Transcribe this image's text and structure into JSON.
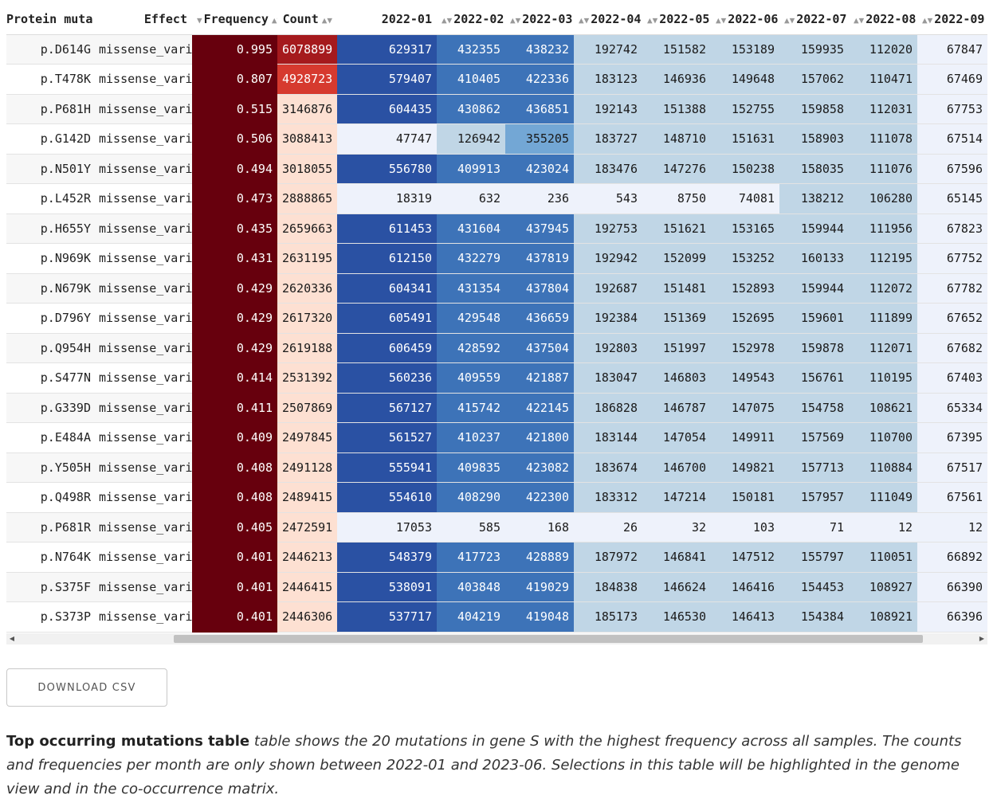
{
  "table": {
    "columns": [
      {
        "label": "Protein muta",
        "sort_icon": "sort-icon"
      },
      {
        "label": "Effect",
        "sort_icon": "sort-icon"
      },
      {
        "label": "Frequency",
        "sort_icon": "sort-desc-icon"
      },
      {
        "label": "Count",
        "sort_icon": "sort-icon"
      },
      {
        "label": "2022-01",
        "sort_icon": "sort-icon"
      },
      {
        "label": "2022-02",
        "sort_icon": "sort-icon"
      },
      {
        "label": "2022-03",
        "sort_icon": "sort-icon"
      },
      {
        "label": "2022-04",
        "sort_icon": "sort-icon"
      },
      {
        "label": "2022-05",
        "sort_icon": "sort-icon"
      },
      {
        "label": "2022-06",
        "sort_icon": "sort-icon"
      },
      {
        "label": "2022-07",
        "sort_icon": "sort-icon"
      },
      {
        "label": "2022-08",
        "sort_icon": "sort-icon"
      },
      {
        "label": "2022-09",
        "sort_icon": "sort-icon"
      }
    ],
    "rows": [
      {
        "mutation": "p.D614G",
        "effect": "missense_vari",
        "frequency": "0.995",
        "count": "6078899",
        "months": [
          "629317",
          "432355",
          "438232",
          "192742",
          "151582",
          "153189",
          "159935",
          "112020",
          "67847"
        ]
      },
      {
        "mutation": "p.T478K",
        "effect": "missense_vari",
        "frequency": "0.807",
        "count": "4928723",
        "months": [
          "579407",
          "410405",
          "422336",
          "183123",
          "146936",
          "149648",
          "157062",
          "110471",
          "67469"
        ]
      },
      {
        "mutation": "p.P681H",
        "effect": "missense_vari",
        "frequency": "0.515",
        "count": "3146876",
        "months": [
          "604435",
          "430862",
          "436851",
          "192143",
          "151388",
          "152755",
          "159858",
          "112031",
          "67753"
        ]
      },
      {
        "mutation": "p.G142D",
        "effect": "missense_vari",
        "frequency": "0.506",
        "count": "3088413",
        "months": [
          "47747",
          "126942",
          "355205",
          "183727",
          "148710",
          "151631",
          "158903",
          "111078",
          "67514"
        ]
      },
      {
        "mutation": "p.N501Y",
        "effect": "missense_vari",
        "frequency": "0.494",
        "count": "3018055",
        "months": [
          "556780",
          "409913",
          "423024",
          "183476",
          "147276",
          "150238",
          "158035",
          "111076",
          "67596"
        ]
      },
      {
        "mutation": "p.L452R",
        "effect": "missense_vari",
        "frequency": "0.473",
        "count": "2888865",
        "months": [
          "18319",
          "632",
          "236",
          "543",
          "8750",
          "74081",
          "138212",
          "106280",
          "65145"
        ]
      },
      {
        "mutation": "p.H655Y",
        "effect": "missense_vari",
        "frequency": "0.435",
        "count": "2659663",
        "months": [
          "611453",
          "431604",
          "437945",
          "192753",
          "151621",
          "153165",
          "159944",
          "111956",
          "67823"
        ]
      },
      {
        "mutation": "p.N969K",
        "effect": "missense_vari",
        "frequency": "0.431",
        "count": "2631195",
        "months": [
          "612150",
          "432279",
          "437819",
          "192942",
          "152099",
          "153252",
          "160133",
          "112195",
          "67752"
        ]
      },
      {
        "mutation": "p.N679K",
        "effect": "missense_vari",
        "frequency": "0.429",
        "count": "2620336",
        "months": [
          "604341",
          "431354",
          "437804",
          "192687",
          "151481",
          "152893",
          "159944",
          "112072",
          "67782"
        ]
      },
      {
        "mutation": "p.D796Y",
        "effect": "missense_vari",
        "frequency": "0.429",
        "count": "2617320",
        "months": [
          "605491",
          "429548",
          "436659",
          "192384",
          "151369",
          "152695",
          "159601",
          "111899",
          "67652"
        ]
      },
      {
        "mutation": "p.Q954H",
        "effect": "missense_vari",
        "frequency": "0.429",
        "count": "2619188",
        "months": [
          "606459",
          "428592",
          "437504",
          "192803",
          "151997",
          "152978",
          "159878",
          "112071",
          "67682"
        ]
      },
      {
        "mutation": "p.S477N",
        "effect": "missense_vari",
        "frequency": "0.414",
        "count": "2531392",
        "months": [
          "560236",
          "409559",
          "421887",
          "183047",
          "146803",
          "149543",
          "156761",
          "110195",
          "67403"
        ]
      },
      {
        "mutation": "p.G339D",
        "effect": "missense_vari",
        "frequency": "0.411",
        "count": "2507869",
        "months": [
          "567127",
          "415742",
          "422145",
          "186828",
          "146787",
          "147075",
          "154758",
          "108621",
          "65334"
        ]
      },
      {
        "mutation": "p.E484A",
        "effect": "missense_vari",
        "frequency": "0.409",
        "count": "2497845",
        "months": [
          "561527",
          "410237",
          "421800",
          "183144",
          "147054",
          "149911",
          "157569",
          "110700",
          "67395"
        ]
      },
      {
        "mutation": "p.Y505H",
        "effect": "missense_vari",
        "frequency": "0.408",
        "count": "2491128",
        "months": [
          "555941",
          "409835",
          "423082",
          "183674",
          "146700",
          "149821",
          "157713",
          "110884",
          "67517"
        ]
      },
      {
        "mutation": "p.Q498R",
        "effect": "missense_vari",
        "frequency": "0.408",
        "count": "2489415",
        "months": [
          "554610",
          "408290",
          "422300",
          "183312",
          "147214",
          "150181",
          "157957",
          "111049",
          "67561"
        ]
      },
      {
        "mutation": "p.P681R",
        "effect": "missense_vari",
        "frequency": "0.405",
        "count": "2472591",
        "months": [
          "17053",
          "585",
          "168",
          "26",
          "32",
          "103",
          "71",
          "12",
          "12"
        ]
      },
      {
        "mutation": "p.N764K",
        "effect": "missense_vari",
        "frequency": "0.401",
        "count": "2446213",
        "months": [
          "548379",
          "417723",
          "428889",
          "187972",
          "146841",
          "147512",
          "155797",
          "110051",
          "66892"
        ]
      },
      {
        "mutation": "p.S375F",
        "effect": "missense_vari",
        "frequency": "0.401",
        "count": "2446415",
        "months": [
          "538091",
          "403848",
          "419029",
          "184838",
          "146624",
          "146416",
          "154453",
          "108927",
          "66390"
        ]
      },
      {
        "mutation": "p.S373P",
        "effect": "missense_vari",
        "frequency": "0.401",
        "count": "2446306",
        "months": [
          "537717",
          "404219",
          "419048",
          "185173",
          "146530",
          "146413",
          "154384",
          "108921",
          "66396"
        ]
      }
    ]
  },
  "colors": {
    "freq_cell": "#67000d",
    "count_top": "#a51a1d",
    "count_second": "#d63a2f",
    "count_rest": "#fde0d2"
  },
  "download": {
    "label": "DOWNLOAD CSV"
  },
  "caption": {
    "title": "Top occurring mutations table",
    "text": "table shows the 20 mutations in gene S with the highest frequency across all samples. The counts and frequencies per month are only shown between 2022-01 and 2023-06. Selections in this table will be highlighted in the genome view and in the co-occurrence matrix."
  }
}
